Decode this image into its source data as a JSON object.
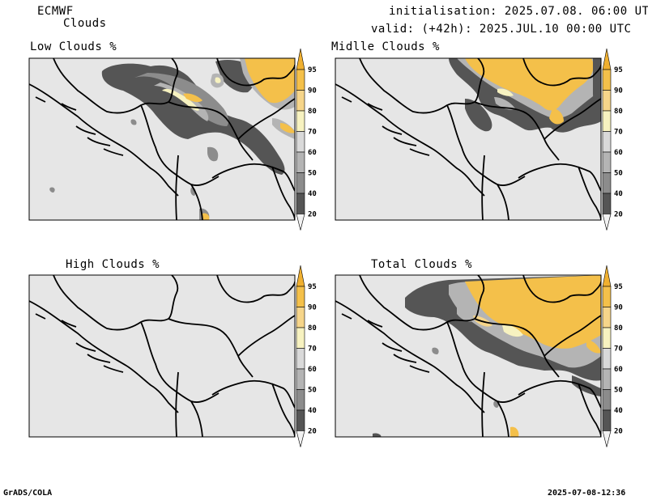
{
  "header": {
    "model": "ECMWF",
    "product": "Clouds",
    "init": "initialisation: 2025.07.08. 06:00 UTC",
    "valid": "valid: (+42h): 2025.JUL.10 00:00 UTC"
  },
  "panels": [
    {
      "id": "low",
      "title": "Low Clouds %"
    },
    {
      "id": "middle",
      "title": "Midlle Clouds %"
    },
    {
      "id": "high",
      "title": "High Clouds %"
    },
    {
      "id": "total",
      "title": "Total Clouds %"
    }
  ],
  "colorbar": {
    "levels": [
      "95",
      "90",
      "80",
      "70",
      "60",
      "50",
      "40",
      "20"
    ],
    "colors": {
      "gt95": "#f0b030",
      "c90_95": "#f4c04a",
      "c80_90": "#f6d58a",
      "c70_80": "#f7f2c0",
      "c60_70": "#d9d9d9",
      "c50_60": "#b4b4b4",
      "c40_50": "#8c8c8c",
      "c20_40": "#555555",
      "lt20": "#f2f2f2"
    }
  },
  "colors": {
    "background_field": "#e6e6e6",
    "border": "#000000"
  },
  "footer": {
    "left": "GrADS/COLA",
    "right": "2025-07-08-12:36"
  }
}
